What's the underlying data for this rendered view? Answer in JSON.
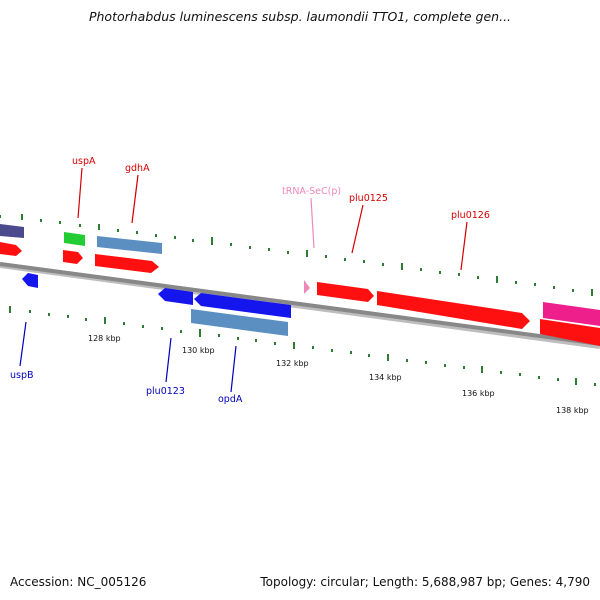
{
  "title": "Photorhabdus luminescens subsp. laumondii TTO1, complete gen...",
  "footer": {
    "accession": "Accession: NC_005126",
    "topology": "Topology: circular; Length: 5,688,987 bp; Genes: 4,790"
  },
  "colors": {
    "backbone": "#8a8a8a",
    "tick": "#2e7d32",
    "upper_label": "#d40000",
    "lower_label": "#0000bb",
    "trna_label": "#ee88bb",
    "gene_red": "#ff1010",
    "gene_steelblue": "#5b8fc2",
    "gene_blue": "#1515ee",
    "gene_green": "#22cc33",
    "gene_indigo": "#4b4a8c",
    "gene_pink": "#ee1f8a"
  },
  "scale_labels": [
    "128 kbp",
    "130 kbp",
    "132 kbp",
    "134 kbp",
    "136 kbp",
    "138 kbp"
  ],
  "upper_gene_labels": [
    {
      "name": "uspA",
      "type": "gene"
    },
    {
      "name": "gdhA",
      "type": "gene"
    },
    {
      "name": "tRNA-SeC(p)",
      "type": "trna"
    },
    {
      "name": "plu0125",
      "type": "gene"
    },
    {
      "name": "plu0126",
      "type": "gene"
    }
  ],
  "lower_gene_labels": [
    {
      "name": "uspB"
    },
    {
      "name": "plu0123"
    },
    {
      "name": "opdA"
    }
  ]
}
